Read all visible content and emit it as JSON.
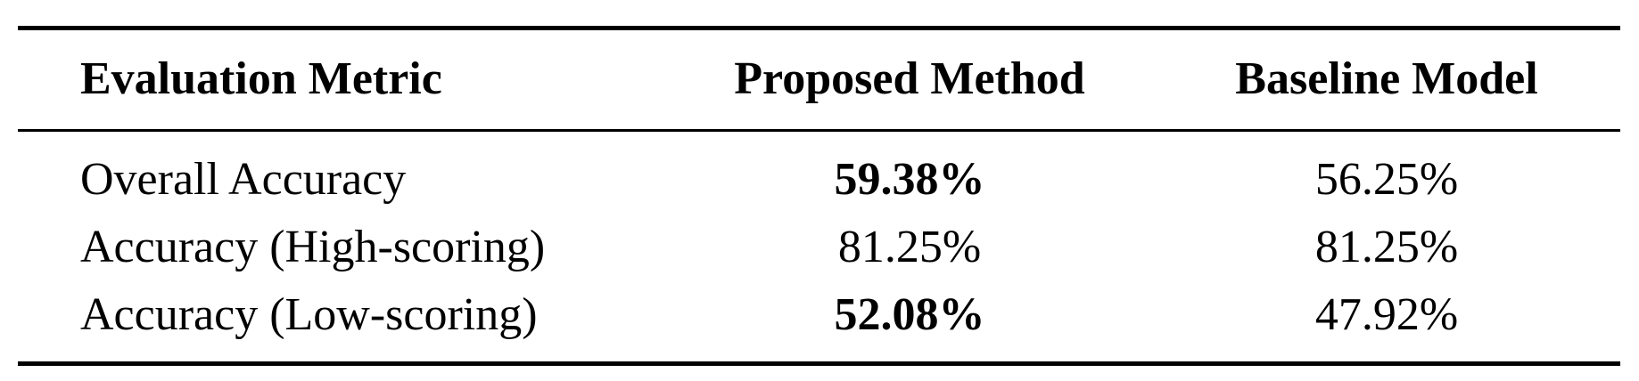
{
  "table": {
    "headers": [
      "Evaluation Metric",
      "Proposed Method",
      "Baseline Model"
    ],
    "rows": [
      {
        "metric": "Overall Accuracy",
        "proposed": "59.38%",
        "baseline": "56.25%",
        "proposed_bold": true
      },
      {
        "metric": "Accuracy (High-scoring)",
        "proposed": "81.25%",
        "baseline": "81.25%",
        "proposed_bold": false
      },
      {
        "metric": "Accuracy (Low-scoring)",
        "proposed": "52.08%",
        "baseline": "47.92%",
        "proposed_bold": true
      }
    ]
  }
}
